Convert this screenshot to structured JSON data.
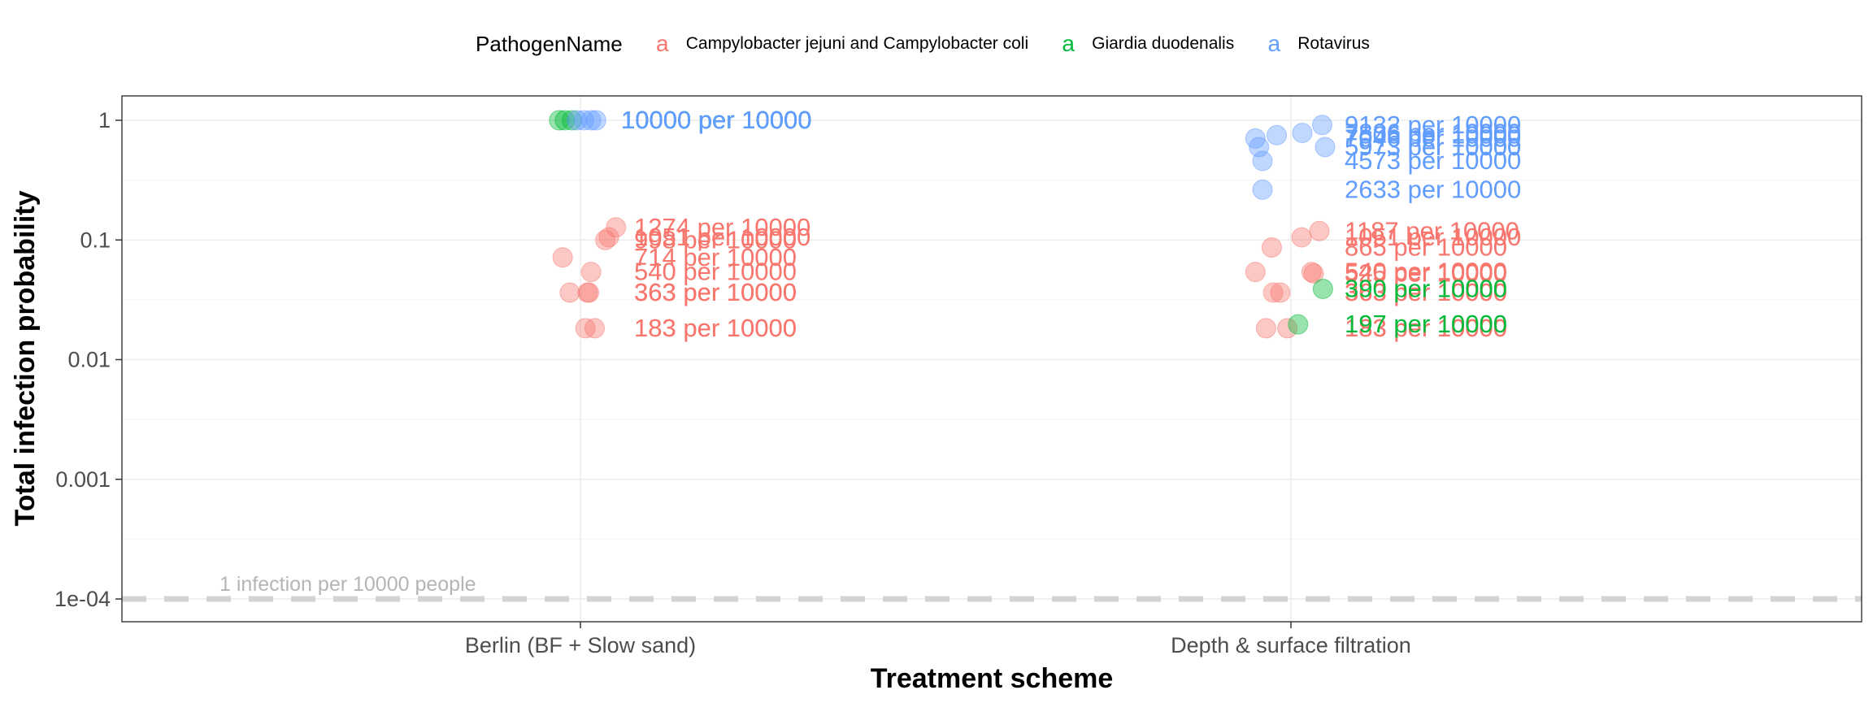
{
  "chart_data": {
    "type": "scatter",
    "title": "",
    "xlabel": "Treatment scheme",
    "ylabel": "Total infection probability",
    "y_scale": "log10",
    "ylim": [
      0.0001,
      1
    ],
    "yticks": [
      {
        "value": 1,
        "label": "1"
      },
      {
        "value": 0.1,
        "label": "0.1"
      },
      {
        "value": 0.01,
        "label": "0.01"
      },
      {
        "value": 0.001,
        "label": "0.001"
      },
      {
        "value": 0.0001,
        "label": "1e-04"
      }
    ],
    "categories": [
      "Berlin (BF + Slow sand)",
      "Depth & surface filtration"
    ],
    "grid": true,
    "legend": {
      "position": "top",
      "title": "PathogenName",
      "key_glyph": "a",
      "entries": [
        {
          "name": "Campylobacter jejuni and Campylobacter coli",
          "color": "#F8766D"
        },
        {
          "name": "Giardia duodenalis",
          "color": "#00BA38"
        },
        {
          "name": "Rotavirus",
          "color": "#619CFF"
        }
      ]
    },
    "reference_line": {
      "y": 0.0001,
      "label": "1 infection per 10000 people",
      "color": "#d3d3d3"
    },
    "series": [
      {
        "name": "Campylobacter jejuni and Campylobacter coli",
        "color": "#F8766D",
        "points": [
          {
            "x": "Berlin (BF + Slow sand)",
            "y": 0.1274,
            "label": "1274 per 10000",
            "jitter": 0.05
          },
          {
            "x": "Berlin (BF + Slow sand)",
            "y": 0.1051,
            "label": "1051 per 10000",
            "jitter": 0.04
          },
          {
            "x": "Berlin (BF + Slow sand)",
            "y": 0.0998,
            "label": "998 per 10000",
            "jitter": 0.035
          },
          {
            "x": "Berlin (BF + Slow sand)",
            "y": 0.0714,
            "label": "714 per 10000",
            "jitter": -0.025
          },
          {
            "x": "Berlin (BF + Slow sand)",
            "y": 0.054,
            "label": "540 per 10000",
            "jitter": 0.015
          },
          {
            "x": "Berlin (BF + Slow sand)",
            "y": 0.0363,
            "label": "363 per 10000",
            "jitter": -0.015
          },
          {
            "x": "Berlin (BF + Slow sand)",
            "y": 0.0363,
            "label": "363 per 10000",
            "jitter": 0.01
          },
          {
            "x": "Berlin (BF + Slow sand)",
            "y": 0.0363,
            "label": "363 per 10000",
            "jitter": 0.012
          },
          {
            "x": "Berlin (BF + Slow sand)",
            "y": 0.0183,
            "label": "183 per 10000",
            "jitter": 0.007
          },
          {
            "x": "Berlin (BF + Slow sand)",
            "y": 0.0183,
            "label": "183 per 10000",
            "jitter": 0.02
          },
          {
            "x": "Depth & surface filtration",
            "y": 0.1187,
            "label": "1187 per 10000",
            "jitter": 0.04
          },
          {
            "x": "Depth & surface filtration",
            "y": 0.1051,
            "label": "1051 per 10000",
            "jitter": 0.015
          },
          {
            "x": "Depth & surface filtration",
            "y": 0.0865,
            "label": "865 per 10000",
            "jitter": -0.027
          },
          {
            "x": "Depth & surface filtration",
            "y": 0.054,
            "label": "540 per 10000",
            "jitter": -0.05
          },
          {
            "x": "Depth & surface filtration",
            "y": 0.054,
            "label": "540 per 10000",
            "jitter": 0.029
          },
          {
            "x": "Depth & surface filtration",
            "y": 0.0525,
            "label": "525 per 10000",
            "jitter": 0.032
          },
          {
            "x": "Depth & surface filtration",
            "y": 0.0363,
            "label": "363 per 10000",
            "jitter": -0.025
          },
          {
            "x": "Depth & surface filtration",
            "y": 0.0363,
            "label": "363 per 10000",
            "jitter": -0.015
          },
          {
            "x": "Depth & surface filtration",
            "y": 0.0183,
            "label": "183 per 10000",
            "jitter": -0.035
          },
          {
            "x": "Depth & surface filtration",
            "y": 0.0183,
            "label": "183 per 10000",
            "jitter": -0.005
          }
        ]
      },
      {
        "name": "Giardia duodenalis",
        "color": "#00BA38",
        "points": [
          {
            "x": "Berlin (BF + Slow sand)",
            "y": 1,
            "label": "10000 per 10000",
            "jitter": -0.03
          },
          {
            "x": "Berlin (BF + Slow sand)",
            "y": 1,
            "label": "10000 per 10000",
            "jitter": -0.022
          },
          {
            "x": "Berlin (BF + Slow sand)",
            "y": 1,
            "label": "10000 per 10000",
            "jitter": -0.012
          },
          {
            "x": "Depth & surface filtration",
            "y": 0.039,
            "label": "390 per 10000",
            "jitter": 0.045
          },
          {
            "x": "Depth & surface filtration",
            "y": 0.0197,
            "label": "197 per 10000",
            "jitter": 0.01
          }
        ]
      },
      {
        "name": "Rotavirus",
        "color": "#619CFF",
        "points": [
          {
            "x": "Berlin (BF + Slow sand)",
            "y": 1,
            "label": "10000 per 10000",
            "jitter": -0.005
          },
          {
            "x": "Berlin (BF + Slow sand)",
            "y": 1,
            "label": "10000 per 10000",
            "jitter": 0.005
          },
          {
            "x": "Berlin (BF + Slow sand)",
            "y": 1,
            "label": "10000 per 10000",
            "jitter": 0.015
          },
          {
            "x": "Berlin (BF + Slow sand)",
            "y": 1,
            "label": "10000 per 10000",
            "jitter": 0.022
          },
          {
            "x": "Depth & surface filtration",
            "y": 0.9132,
            "label": "9132 per 10000",
            "jitter": 0.044
          },
          {
            "x": "Depth & surface filtration",
            "y": 0.7836,
            "label": "7836 per 10000",
            "jitter": 0.016
          },
          {
            "x": "Depth & surface filtration",
            "y": 0.7506,
            "label": "7506 per 10000",
            "jitter": -0.02
          },
          {
            "x": "Depth & surface filtration",
            "y": 0.7046,
            "label": "7046 per 10000",
            "jitter": -0.05
          },
          {
            "x": "Depth & surface filtration",
            "y": 0.5973,
            "label": "5973 per 10000",
            "jitter": 0.048
          },
          {
            "x": "Depth & surface filtration",
            "y": 0.5973,
            "label": "5973 per 10000",
            "jitter": -0.045
          },
          {
            "x": "Depth & surface filtration",
            "y": 0.4573,
            "label": "4573 per 10000",
            "jitter": -0.04
          },
          {
            "x": "Depth & surface filtration",
            "y": 0.2633,
            "label": "2633 per 10000",
            "jitter": -0.04
          }
        ]
      }
    ]
  }
}
